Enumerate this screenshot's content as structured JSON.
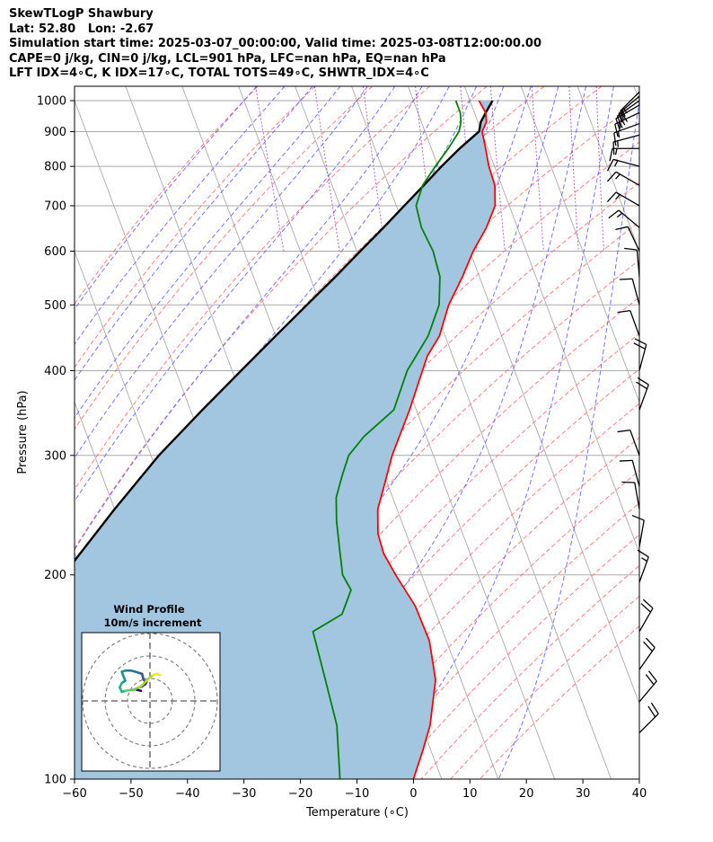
{
  "chart_data": {
    "type": "skew-t log-p",
    "title_lines": [
      "SkewTLogP Shawbury",
      "Lat: 52.80   Lon: -2.67",
      "Simulation start time: 2025-03-07_00:00:00, Valid time: 2025-03-08T12:00:00.00",
      "CAPE=0 j/kg, CIN=0 j/kg, LCL=901 hPa, LFC=nan hPa, EQ=nan hPa",
      "LFT IDX=4∘C, K IDX=17∘C, TOTAL TOTS=49∘C, SHWTR_IDX=4∘C"
    ],
    "xlabel": "Temperature (∘C)",
    "ylabel": "Pressure (hPa)",
    "xlim": [
      -60,
      40
    ],
    "ylim": [
      1050,
      100
    ],
    "x_ticks": [
      -60,
      -50,
      -40,
      -30,
      -20,
      -10,
      0,
      10,
      20,
      30,
      40
    ],
    "y_ticks": [
      1000,
      900,
      800,
      700,
      600,
      500,
      400,
      300,
      200,
      100
    ],
    "grid": true,
    "y_scale": "log",
    "skew_per_decade": 45,
    "colors": {
      "temperature": "#ff0000",
      "dewpoint": "#008000",
      "parcel": "#000000",
      "shading": "#a2c6e0",
      "dry_adiabats": "#ff7070",
      "moist_adiabats": "#5a5aff",
      "mixing_ratio": "#a040c0",
      "isotherms": "#aaaaaa",
      "barbs": "#000000"
    },
    "temperature": {
      "name": "temperature",
      "p": [
        1000,
        960,
        930,
        900,
        850,
        800,
        750,
        700,
        650,
        600,
        550,
        500,
        450,
        420,
        400,
        350,
        300,
        270,
        250,
        230,
        215,
        200,
        180,
        160,
        140,
        120,
        110,
        100
      ],
      "t": [
        11.6,
        12.0,
        11.5,
        10.1,
        9.6,
        9.0,
        8.8,
        7.5,
        4.5,
        0.6,
        -3.0,
        -7.3,
        -11.0,
        -14.5,
        -16.3,
        -21.2,
        -27.3,
        -30.8,
        -33.4,
        -35.0,
        -35.3,
        -34.6,
        -33.2,
        -33.0,
        -34.5,
        -38.5,
        -41.5,
        -45.0
      ]
    },
    "dewpoint": {
      "name": "dewpoint",
      "p": [
        1000,
        960,
        930,
        900,
        850,
        800,
        750,
        700,
        650,
        600,
        550,
        500,
        450,
        400,
        350,
        320,
        300,
        280,
        260,
        240,
        220,
        200,
        190,
        175,
        165,
        140,
        120,
        100
      ],
      "td": [
        7.5,
        7.5,
        7.0,
        6.0,
        3.0,
        -0.5,
        -4.0,
        -6.5,
        -7.0,
        -6.5,
        -7.0,
        -9.0,
        -13.0,
        -19.0,
        -24.0,
        -31.0,
        -35.0,
        -37.5,
        -40.0,
        -41.5,
        -42.7,
        -44.0,
        -43.5,
        -46.7,
        -53.0,
        -54.0,
        -55.0,
        -58.0
      ]
    },
    "parcel": {
      "name": "parcel",
      "p": [
        1000,
        960,
        930,
        901,
        850,
        800,
        750,
        700,
        650,
        600,
        550,
        500,
        450,
        400,
        350,
        300,
        250,
        200,
        175,
        150,
        130,
        115,
        100
      ],
      "t": [
        14.0,
        12.0,
        10.5,
        9.6,
        5.0,
        0.6,
        -3.8,
        -8.6,
        -13.7,
        -19.4,
        -25.5,
        -32.4,
        -40.0,
        -48.4,
        -57.9,
        -68.6,
        -80.0,
        -93.4,
        -100.8,
        -109.1,
        -116.5,
        -122.6,
        -129.6
      ]
    },
    "wind_barbs": [
      {
        "p": 1030,
        "direction": 225,
        "speed_kt": 15
      },
      {
        "p": 1015,
        "direction": 230,
        "speed_kt": 15
      },
      {
        "p": 1000,
        "direction": 235,
        "speed_kt": 15
      },
      {
        "p": 985,
        "direction": 240,
        "speed_kt": 15
      },
      {
        "p": 960,
        "direction": 245,
        "speed_kt": 15
      },
      {
        "p": 925,
        "direction": 250,
        "speed_kt": 15
      },
      {
        "p": 890,
        "direction": 255,
        "speed_kt": 15
      },
      {
        "p": 850,
        "direction": 270,
        "speed_kt": 15
      },
      {
        "p": 800,
        "direction": 285,
        "speed_kt": 15
      },
      {
        "p": 750,
        "direction": 300,
        "speed_kt": 15
      },
      {
        "p": 700,
        "direction": 300,
        "speed_kt": 15
      },
      {
        "p": 650,
        "direction": 310,
        "speed_kt": 15
      },
      {
        "p": 600,
        "direction": 335,
        "speed_kt": 10
      },
      {
        "p": 550,
        "direction": 355,
        "speed_kt": 10
      },
      {
        "p": 500,
        "direction": 345,
        "speed_kt": 10
      },
      {
        "p": 450,
        "direction": 340,
        "speed_kt": 10
      },
      {
        "p": 400,
        "direction": 15,
        "speed_kt": 20
      },
      {
        "p": 350,
        "direction": 20,
        "speed_kt": 20
      },
      {
        "p": 300,
        "direction": 340,
        "speed_kt": 10
      },
      {
        "p": 270,
        "direction": 345,
        "speed_kt": 10
      },
      {
        "p": 250,
        "direction": 350,
        "speed_kt": 10
      },
      {
        "p": 220,
        "direction": 10,
        "speed_kt": 10
      },
      {
        "p": 195,
        "direction": 20,
        "speed_kt": 15
      },
      {
        "p": 165,
        "direction": 30,
        "speed_kt": 20
      },
      {
        "p": 145,
        "direction": 35,
        "speed_kt": 20
      },
      {
        "p": 130,
        "direction": 40,
        "speed_kt": 20
      },
      {
        "p": 117,
        "direction": 45,
        "speed_kt": 20
      }
    ],
    "hodograph": {
      "title_lines": [
        "Wind Profile",
        "10m/s increment"
      ],
      "ring_speeds_ms": [
        10,
        20,
        30
      ],
      "colormap": "viridis",
      "u": [
        -4.0,
        -6.0,
        -5.0,
        -3.5,
        -2.0,
        -1.5,
        -2.5,
        -3.0,
        -3.5,
        -5.0,
        -6.5,
        -8.5,
        -11.0,
        -12.5,
        -12.0,
        -11.0,
        -12.5,
        -13.5,
        -12.5,
        -11.0,
        -9.0,
        -7.0,
        -5.0,
        -3.5,
        -2.0,
        0.0,
        1.5,
        3.0,
        4.5
      ],
      "v": [
        4.5,
        5.0,
        6.0,
        6.5,
        7.5,
        8.5,
        9.0,
        10.0,
        12.0,
        12.5,
        13.0,
        13.5,
        13.5,
        13.0,
        11.5,
        9.0,
        8.0,
        6.0,
        4.0,
        4.5,
        4.8,
        5.0,
        6.0,
        7.0,
        8.5,
        10.5,
        11.5,
        12.0,
        11.5
      ]
    }
  }
}
